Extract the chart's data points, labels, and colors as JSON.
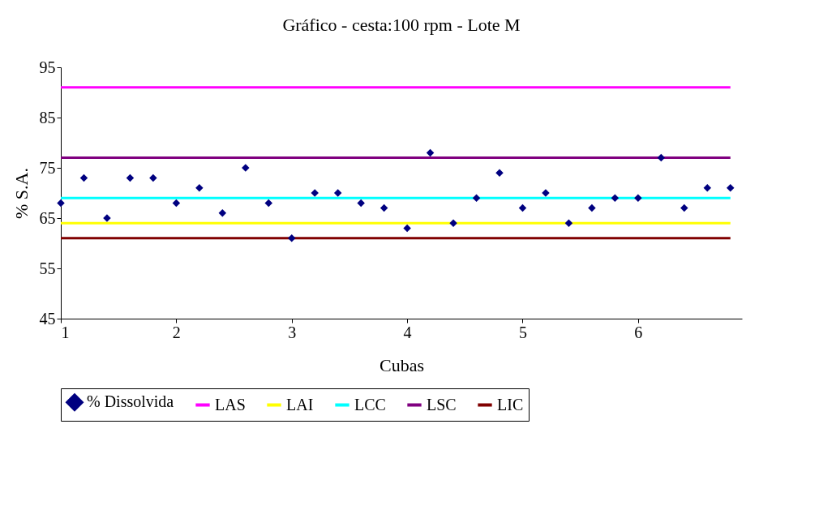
{
  "chart_data": {
    "type": "scatter",
    "title": "Gráfico - cesta:100 rpm - Lote M",
    "xlabel": "Cubas",
    "ylabel": "% S.A.",
    "xlim": [
      1,
      6.9
    ],
    "xticks": [
      1,
      2,
      3,
      4,
      5,
      6
    ],
    "ylim": [
      45,
      95
    ],
    "yticks": [
      45,
      55,
      65,
      75,
      85,
      95
    ],
    "grid": false,
    "legend": "bottom",
    "series": [
      {
        "name": "% Dissolvida",
        "marker": "diamond",
        "color": "#000080",
        "x": [
          1.0,
          1.2,
          1.4,
          1.6,
          1.8,
          2.0,
          2.2,
          2.4,
          2.6,
          2.8,
          3.0,
          3.2,
          3.4,
          3.6,
          3.8,
          4.0,
          4.2,
          4.4,
          4.6,
          4.8,
          5.0,
          5.2,
          5.4,
          5.6,
          5.8,
          6.0,
          6.2,
          6.4,
          6.6,
          6.8
        ],
        "values": [
          68,
          73,
          65,
          73,
          73,
          68,
          71,
          66,
          75,
          68,
          61,
          70,
          70,
          68,
          67,
          63,
          78,
          64,
          69,
          74,
          67,
          70,
          64,
          67,
          69,
          69,
          77,
          67,
          71,
          71
        ]
      },
      {
        "name": "LAS",
        "type": "line",
        "color": "#ff00ff",
        "x": [
          1,
          6.8
        ],
        "values": [
          91,
          91
        ]
      },
      {
        "name": "LAI",
        "type": "line",
        "color": "#ffff00",
        "x": [
          1,
          6.8
        ],
        "values": [
          64,
          64
        ]
      },
      {
        "name": "LCC",
        "type": "line",
        "color": "#00ffff",
        "x": [
          1,
          6.8
        ],
        "values": [
          69,
          69
        ]
      },
      {
        "name": "LSC",
        "type": "line",
        "color": "#800080",
        "x": [
          1,
          6.8
        ],
        "values": [
          77,
          77
        ]
      },
      {
        "name": "LIC",
        "type": "line",
        "color": "#800000",
        "x": [
          1,
          6.8
        ],
        "values": [
          61,
          61
        ]
      }
    ]
  }
}
